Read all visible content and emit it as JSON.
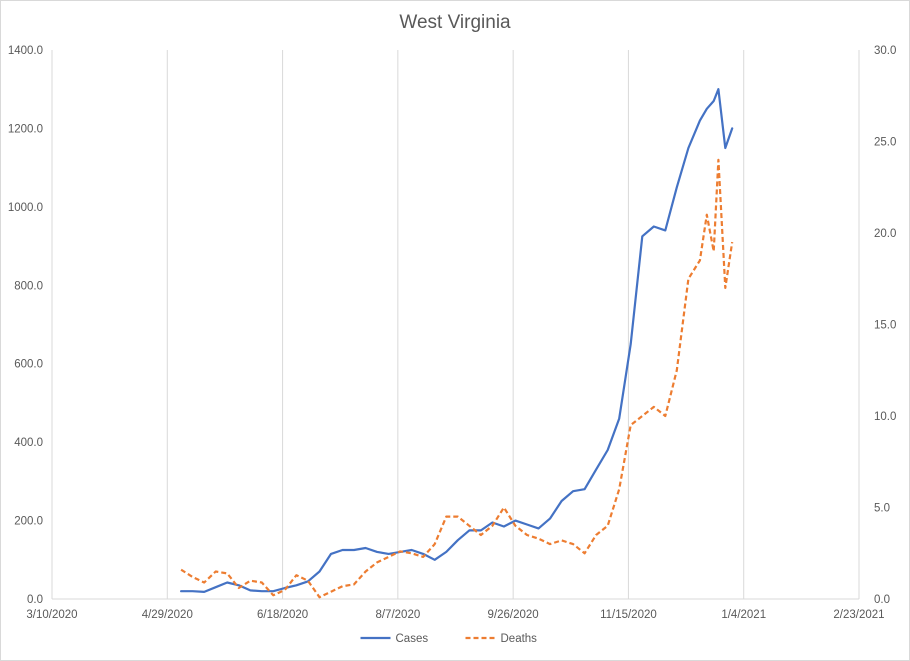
{
  "chart_data": {
    "type": "line",
    "title": "West Virginia",
    "xlabel": "",
    "ylabel": "",
    "x_ticks": [
      "3/10/2020",
      "4/29/2020",
      "6/18/2020",
      "8/7/2020",
      "9/26/2020",
      "11/15/2020",
      "1/4/2021",
      "2/23/2021"
    ],
    "xlim": [
      "2020-03-10",
      "2021-02-23"
    ],
    "ylim_left": [
      0,
      1400
    ],
    "ylim_right": [
      0,
      30
    ],
    "y_left_ticks": [
      "0.0",
      "200.0",
      "400.0",
      "600.0",
      "800.0",
      "1000.0",
      "1200.0",
      "1400.0"
    ],
    "y_right_ticks": [
      "0.0",
      "5.0",
      "10.0",
      "15.0",
      "20.0",
      "25.0",
      "30.0"
    ],
    "grid": "vertical",
    "legend_position": "bottom",
    "series": [
      {
        "name": "Cases",
        "axis": "left",
        "color": "#4472c4",
        "style": "solid",
        "x": [
          "2020-05-05",
          "2020-05-10",
          "2020-05-15",
          "2020-05-20",
          "2020-05-25",
          "2020-05-30",
          "2020-06-04",
          "2020-06-09",
          "2020-06-14",
          "2020-06-19",
          "2020-06-24",
          "2020-06-29",
          "2020-07-04",
          "2020-07-09",
          "2020-07-14",
          "2020-07-19",
          "2020-07-24",
          "2020-07-29",
          "2020-08-03",
          "2020-08-08",
          "2020-08-13",
          "2020-08-18",
          "2020-08-23",
          "2020-08-28",
          "2020-09-02",
          "2020-09-07",
          "2020-09-12",
          "2020-09-17",
          "2020-09-22",
          "2020-09-27",
          "2020-10-02",
          "2020-10-07",
          "2020-10-12",
          "2020-10-17",
          "2020-10-22",
          "2020-10-27",
          "2020-11-01",
          "2020-11-06",
          "2020-11-11",
          "2020-11-16",
          "2020-11-21",
          "2020-11-26",
          "2020-12-01",
          "2020-12-06",
          "2020-12-11",
          "2020-12-16",
          "2020-12-19",
          "2020-12-22",
          "2020-12-24",
          "2020-12-27",
          "2020-12-30"
        ],
        "values": [
          20,
          20,
          18,
          30,
          42,
          35,
          22,
          20,
          20,
          28,
          35,
          45,
          70,
          115,
          125,
          125,
          130,
          120,
          115,
          120,
          125,
          115,
          100,
          120,
          150,
          175,
          175,
          195,
          185,
          200,
          190,
          180,
          205,
          250,
          275,
          280,
          330,
          380,
          460,
          650,
          925,
          950,
          940,
          1050,
          1150,
          1220,
          1250,
          1270,
          1300,
          1150,
          1200
        ]
      },
      {
        "name": "Deaths",
        "axis": "right",
        "color": "#ed7d31",
        "style": "dashed",
        "x": [
          "2020-05-05",
          "2020-05-10",
          "2020-05-15",
          "2020-05-20",
          "2020-05-25",
          "2020-05-30",
          "2020-06-04",
          "2020-06-09",
          "2020-06-14",
          "2020-06-19",
          "2020-06-24",
          "2020-06-29",
          "2020-07-04",
          "2020-07-09",
          "2020-07-14",
          "2020-07-19",
          "2020-07-24",
          "2020-07-29",
          "2020-08-03",
          "2020-08-08",
          "2020-08-13",
          "2020-08-18",
          "2020-08-23",
          "2020-08-28",
          "2020-09-02",
          "2020-09-07",
          "2020-09-12",
          "2020-09-17",
          "2020-09-22",
          "2020-09-27",
          "2020-10-02",
          "2020-10-07",
          "2020-10-12",
          "2020-10-17",
          "2020-10-22",
          "2020-10-27",
          "2020-11-01",
          "2020-11-06",
          "2020-11-11",
          "2020-11-16",
          "2020-11-21",
          "2020-11-26",
          "2020-12-01",
          "2020-12-06",
          "2020-12-11",
          "2020-12-16",
          "2020-12-19",
          "2020-12-22",
          "2020-12-24",
          "2020-12-27",
          "2020-12-30"
        ],
        "values": [
          1.6,
          1.2,
          0.9,
          1.5,
          1.4,
          0.6,
          1.0,
          0.9,
          0.2,
          0.5,
          1.3,
          1.0,
          0.1,
          0.4,
          0.7,
          0.8,
          1.5,
          2.0,
          2.3,
          2.6,
          2.5,
          2.3,
          3.0,
          4.5,
          4.5,
          4.0,
          3.5,
          4.0,
          5.0,
          4.0,
          3.5,
          3.3,
          3.0,
          3.2,
          3.0,
          2.5,
          3.5,
          4.0,
          6.0,
          9.5,
          10.0,
          10.5,
          10.0,
          12.5,
          17.5,
          18.5,
          21.0,
          19.0,
          24.0,
          17.0,
          19.5
        ]
      }
    ]
  }
}
